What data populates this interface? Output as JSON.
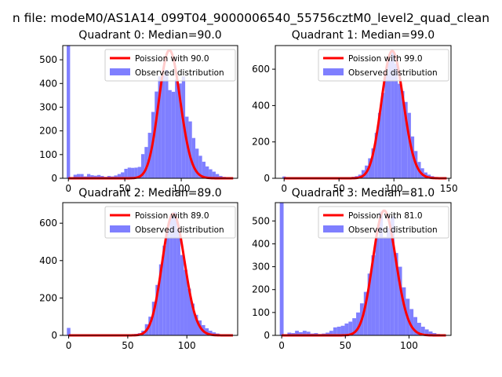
{
  "figure_title": "n file: modeM0/AS1A14_099T04_9000006540_55756cztM0_level2_quad_clean",
  "colors": {
    "poisson": "#ff0000",
    "observed": "#7f7fff",
    "axes": "#000000",
    "legend_border": "#cccccc"
  },
  "chart_data": [
    {
      "type": "bar",
      "title": "Quadrant 0: Median=90.0",
      "median": 90.0,
      "xlim": [
        -5,
        150
      ],
      "ylim": [
        0,
        560
      ],
      "xticks": [
        0,
        50,
        100
      ],
      "yticks": [
        0,
        100,
        200,
        300,
        400,
        500
      ],
      "bin_width": 3,
      "legend": {
        "line": "Poission with 90.0",
        "bar": "Observed distribution",
        "position": "upper right"
      },
      "observed": {
        "x": [
          0,
          3,
          6,
          9,
          12,
          15,
          18,
          21,
          24,
          27,
          30,
          33,
          36,
          39,
          42,
          45,
          48,
          51,
          54,
          57,
          60,
          63,
          66,
          69,
          72,
          75,
          78,
          81,
          84,
          87,
          90,
          93,
          96,
          99,
          102,
          105,
          108,
          111,
          114,
          117,
          120,
          123,
          126,
          129,
          132,
          135,
          138
        ],
        "counts": [
          560,
          5,
          15,
          18,
          18,
          8,
          18,
          13,
          11,
          14,
          10,
          6,
          10,
          8,
          12,
          18,
          25,
          40,
          45,
          44,
          45,
          48,
          102,
          132,
          192,
          280,
          366,
          430,
          435,
          458,
          372,
          365,
          418,
          400,
          430,
          260,
          240,
          170,
          125,
          95,
          70,
          50,
          38,
          28,
          18,
          10,
          6
        ]
      },
      "poisson": {
        "mean": 90.0,
        "scale": 540
      }
    },
    {
      "type": "bar",
      "title": "Quadrant 1: Median=99.0",
      "median": 99.0,
      "xlim": [
        -8,
        152
      ],
      "ylim": [
        0,
        730
      ],
      "xticks": [
        0,
        50,
        100,
        150
      ],
      "yticks": [
        0,
        200,
        400,
        600
      ],
      "bin_width": 3,
      "legend": {
        "line": "Poission with 99.0",
        "bar": "Observed distribution",
        "position": "upper right"
      },
      "observed": {
        "x": [
          0,
          3,
          6,
          9,
          12,
          15,
          18,
          21,
          24,
          27,
          30,
          33,
          36,
          39,
          42,
          45,
          48,
          51,
          54,
          57,
          60,
          63,
          66,
          69,
          72,
          75,
          78,
          81,
          84,
          87,
          90,
          93,
          96,
          99,
          102,
          105,
          108,
          111,
          114,
          117,
          120,
          123,
          126,
          129,
          132,
          135,
          138,
          141,
          144,
          147
        ],
        "counts": [
          10,
          3,
          2,
          2,
          2,
          1,
          2,
          1,
          1,
          1,
          1,
          1,
          1,
          1,
          1,
          1,
          1,
          2,
          2,
          3,
          5,
          8,
          12,
          20,
          45,
          70,
          110,
          165,
          250,
          360,
          470,
          570,
          650,
          700,
          630,
          520,
          480,
          420,
          360,
          230,
          150,
          90,
          55,
          32,
          20,
          12,
          7,
          4,
          2,
          1
        ]
      },
      "poisson": {
        "mean": 99.0,
        "scale": 700
      }
    },
    {
      "type": "bar",
      "title": "Quadrant 2: Median=89.0",
      "median": 89.0,
      "xlim": [
        -5,
        143
      ],
      "ylim": [
        0,
        710
      ],
      "xticks": [
        0,
        50,
        100
      ],
      "yticks": [
        0,
        200,
        400,
        600
      ],
      "bin_width": 3,
      "legend": {
        "line": "Poission with 89.0",
        "bar": "Observed distribution",
        "position": "upper right"
      },
      "observed": {
        "x": [
          0,
          3,
          6,
          9,
          12,
          15,
          18,
          21,
          24,
          27,
          30,
          33,
          36,
          39,
          42,
          45,
          48,
          51,
          54,
          57,
          60,
          63,
          66,
          69,
          72,
          75,
          78,
          81,
          84,
          87,
          90,
          93,
          96,
          99,
          102,
          105,
          108,
          111,
          114,
          117,
          120,
          123,
          126,
          129,
          132,
          135
        ],
        "counts": [
          40,
          3,
          2,
          2,
          2,
          2,
          1,
          1,
          1,
          1,
          1,
          1,
          1,
          2,
          2,
          2,
          3,
          4,
          6,
          8,
          12,
          25,
          60,
          100,
          180,
          270,
          380,
          480,
          560,
          640,
          660,
          570,
          430,
          350,
          250,
          170,
          110,
          80,
          55,
          38,
          25,
          16,
          10,
          6,
          4,
          2
        ]
      },
      "poisson": {
        "mean": 89.0,
        "scale": 650
      }
    },
    {
      "type": "bar",
      "title": "Quadrant 3: Median=81.0",
      "median": 81.0,
      "xlim": [
        -5,
        133
      ],
      "ylim": [
        0,
        580
      ],
      "xticks": [
        0,
        50,
        100
      ],
      "yticks": [
        0,
        100,
        200,
        300,
        400,
        500
      ],
      "bin_width": 3,
      "legend": {
        "line": "Poission with 81.0",
        "bar": "Observed distribution",
        "position": "upper right"
      },
      "observed": {
        "x": [
          0,
          3,
          6,
          9,
          12,
          15,
          18,
          21,
          24,
          27,
          30,
          33,
          36,
          39,
          42,
          45,
          48,
          51,
          54,
          57,
          60,
          63,
          66,
          69,
          72,
          75,
          78,
          81,
          84,
          87,
          90,
          93,
          96,
          99,
          102,
          105,
          108,
          111,
          114,
          117,
          120,
          123,
          126
        ],
        "counts": [
          580,
          4,
          12,
          10,
          20,
          14,
          20,
          16,
          8,
          10,
          6,
          8,
          12,
          20,
          35,
          38,
          42,
          52,
          60,
          75,
          100,
          140,
          190,
          270,
          350,
          430,
          540,
          430,
          470,
          520,
          360,
          300,
          210,
          160,
          115,
          80,
          55,
          38,
          26,
          17,
          10,
          6,
          3
        ]
      },
      "poisson": {
        "mean": 81.0,
        "scale": 545
      }
    }
  ]
}
